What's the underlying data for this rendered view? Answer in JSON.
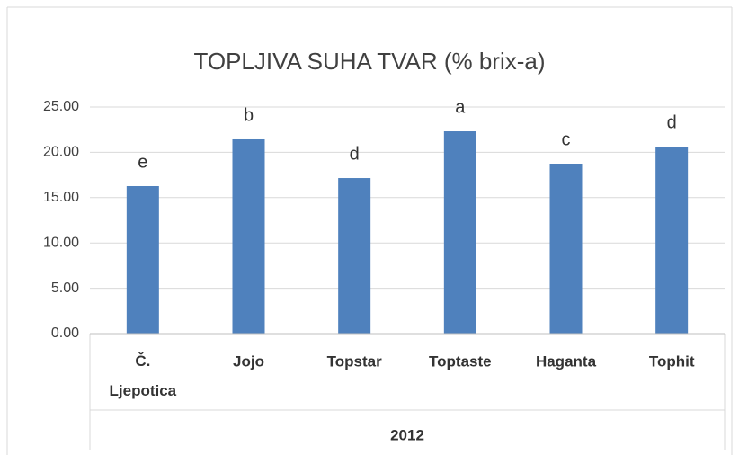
{
  "chart_data": {
    "type": "bar",
    "title": "TOPLJIVA SUHA TVAR (% brix-a)",
    "categories": [
      "Č. Ljepotica",
      "Jojo",
      "Topstar",
      "Toptaste",
      "Haganta",
      "Tophit"
    ],
    "values": [
      16.27,
      21.43,
      17.16,
      22.32,
      18.75,
      20.63
    ],
    "annotations": [
      "e",
      "b",
      "d",
      "a",
      "c",
      "d"
    ],
    "group_label": "2012",
    "color": "#4f81bd",
    "ylim": [
      0,
      25
    ],
    "yticks": [
      {
        "value": 0,
        "label": "0.00"
      },
      {
        "value": 5,
        "label": "5.00"
      },
      {
        "value": 10,
        "label": "10.00"
      },
      {
        "value": 15,
        "label": "15.00"
      },
      {
        "value": 20,
        "label": "20.00"
      },
      {
        "value": 25,
        "label": "25.00"
      }
    ],
    "grid": true
  }
}
